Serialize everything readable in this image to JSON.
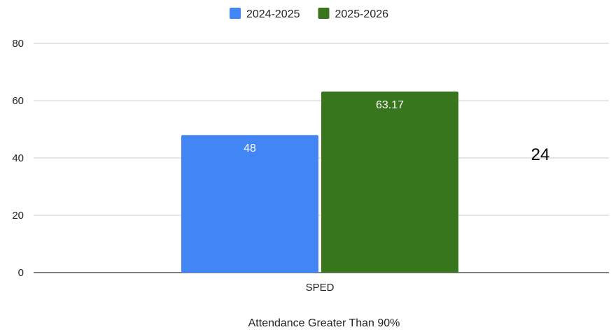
{
  "chart_data": {
    "type": "bar",
    "title": "",
    "xlabel": "Attendance Greater Than 90%",
    "ylabel": "",
    "categories": [
      "SPED"
    ],
    "series": [
      {
        "name": "2024-2025",
        "values": [
          48
        ],
        "color": "#4285f4"
      },
      {
        "name": "2025-2026",
        "values": [
          63.17
        ],
        "color": "#38761d"
      }
    ],
    "ylim": [
      0,
      80
    ],
    "yticks": [
      0,
      20,
      40,
      60,
      80
    ],
    "grid": true,
    "legend": "top-center",
    "annotation": "24"
  }
}
